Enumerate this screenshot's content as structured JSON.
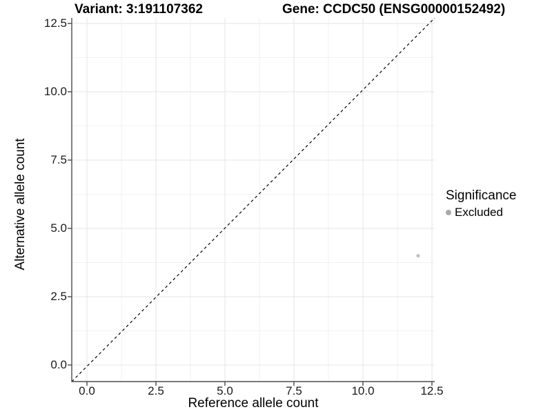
{
  "chart_data": {
    "type": "scatter",
    "titles": {
      "left": "Variant: 3:191107362",
      "right": "Gene: CCDC50 (ENSG00000152492)"
    },
    "xlabel": "Reference allele count",
    "ylabel": "Alternative allele count",
    "xticks": [
      0,
      2.5,
      5,
      7.5,
      10,
      12.5
    ],
    "yticks": [
      0,
      2.5,
      5,
      7.5,
      10,
      12.5
    ],
    "xtick_labels": [
      "0.0",
      "2.5",
      "5.0",
      "7.5",
      "10.0",
      "12.5"
    ],
    "ytick_labels": [
      "0.0",
      "2.5",
      "5.0",
      "7.5",
      "10.0",
      "12.5"
    ],
    "xlim": [
      -0.55,
      12.6
    ],
    "ylim": [
      -0.606,
      12.702
    ],
    "grid": "major and minor, light grey on white",
    "points": [
      {
        "x": 12,
        "y": 4,
        "series": "Excluded"
      }
    ],
    "point_radius": 2.6,
    "identity_line": {
      "type": "y=x",
      "style": "dashed",
      "color": "#000000"
    },
    "legend": {
      "title": "Significance",
      "position": "right",
      "items": [
        {
          "label": "Excluded",
          "color": "#a9a9a9"
        }
      ]
    },
    "colors": {
      "background": "#ffffff",
      "grid_major": "#e4e4e4",
      "grid_minor": "#f1f1f1",
      "axis_line": "#4a4a4a",
      "tick_text": "#1a1a1a",
      "point": "#c2c2c2",
      "diagonal": "#000000"
    }
  }
}
